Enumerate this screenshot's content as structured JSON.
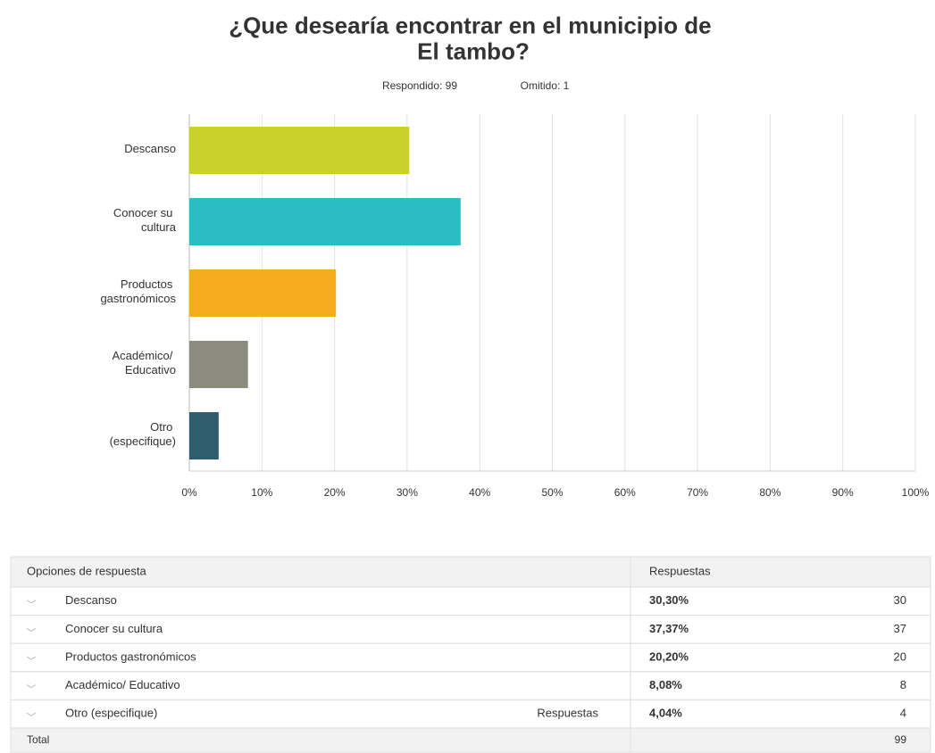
{
  "chart_data": {
    "type": "bar",
    "orientation": "horizontal",
    "title": "¿Que desearía encontrar en el municipio de El tambo?",
    "stats": {
      "answered": "Respondido: 99",
      "skipped": "Omitido: 1"
    },
    "categories": [
      "Descanso",
      "Conocer su cultura",
      "Productos gastronómicos",
      "Académico/ Educativo",
      "Otro (especifique)"
    ],
    "values": [
      30.3,
      37.37,
      20.2,
      8.08,
      4.04
    ],
    "colors": [
      "#c9d22b",
      "#2bbdc1",
      "#f5ac1e",
      "#8c8c7e",
      "#2e5d6e"
    ],
    "xlim": [
      0,
      100
    ],
    "xticks": [
      {
        "value": 0,
        "label": "0%"
      },
      {
        "value": 10,
        "label": "10%"
      },
      {
        "value": 20,
        "label": "20%"
      },
      {
        "value": 30,
        "label": "30%"
      },
      {
        "value": 40,
        "label": "40%"
      },
      {
        "value": 50,
        "label": "50%"
      },
      {
        "value": 60,
        "label": "60%"
      },
      {
        "value": 70,
        "label": "70%"
      },
      {
        "value": 80,
        "label": "80%"
      },
      {
        "value": 90,
        "label": "90%"
      },
      {
        "value": 100,
        "label": "100%"
      }
    ],
    "grid": true
  },
  "table": {
    "headers": [
      "Opciones de respuesta",
      "Respuestas"
    ],
    "rows": [
      [
        "Descanso",
        "30,30%",
        30
      ],
      [
        "Conocer su cultura",
        "37,37%",
        37
      ],
      [
        "Productos gastronómicos",
        "20,20%",
        20
      ],
      [
        "Académico/ Educativo",
        "8,08%",
        8
      ],
      [
        "Otro (especifique)",
        "4,04%",
        4
      ]
    ],
    "link": "Respuestas",
    "total": [
      "Total",
      99
    ]
  }
}
